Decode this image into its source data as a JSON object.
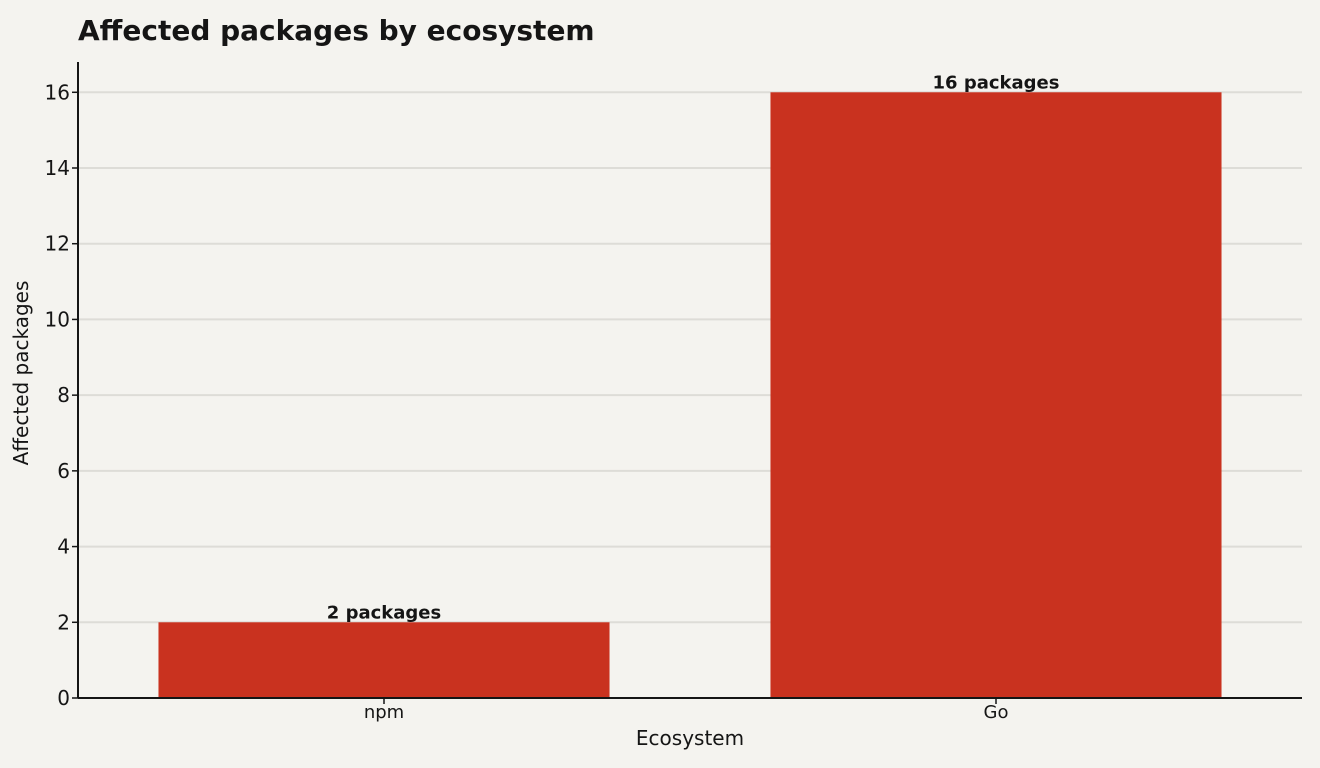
{
  "chart_data": {
    "type": "bar",
    "title": "Affected packages by ecosystem",
    "xlabel": "Ecosystem",
    "ylabel": "Affected packages",
    "categories": [
      "npm",
      "Go"
    ],
    "values": [
      2,
      16
    ],
    "data_labels": [
      "2 packages",
      "16 packages"
    ],
    "ylim": [
      0,
      16.8
    ],
    "yticks": [
      0,
      2,
      4,
      6,
      8,
      10,
      12,
      14,
      16
    ],
    "grid": "horizontal",
    "bar_color": "#c9321f",
    "grid_color": "#dddcd7",
    "background_color": "#f4f3ef"
  }
}
